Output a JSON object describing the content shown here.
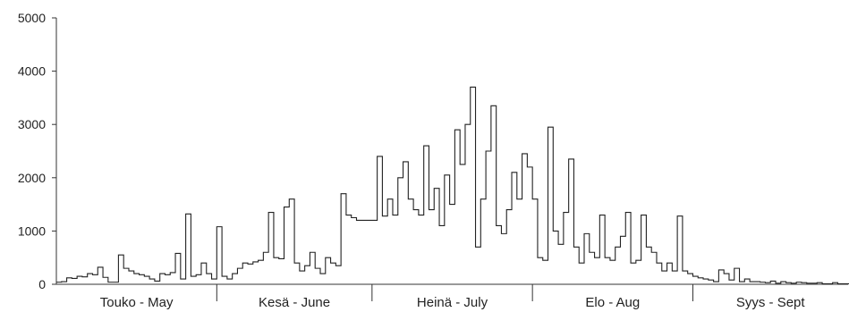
{
  "chart_data": {
    "type": "line",
    "step": true,
    "title": "",
    "xlabel": "",
    "ylabel": "",
    "ylim": [
      0,
      5000
    ],
    "y_ticks": [
      "0",
      "1000",
      "2000",
      "3000",
      "4000",
      "5000"
    ],
    "grid": false,
    "months": [
      "Touko - May",
      "Kesä - June",
      "Heinä - July",
      "Elo - Aug",
      "Syys - Sept"
    ],
    "day_range": [
      1,
      153
    ],
    "month_boundaries": [
      32,
      62,
      93,
      124
    ],
    "series": [
      {
        "values": [
          40,
          50,
          120,
          110,
          150,
          140,
          200,
          180,
          320,
          130,
          40,
          40,
          550,
          300,
          250,
          200,
          180,
          150,
          100,
          60,
          200,
          180,
          220,
          580,
          100,
          1320,
          150,
          180,
          400,
          200,
          100,
          1080,
          150,
          100,
          200,
          300,
          400,
          380,
          420,
          450,
          600,
          1350,
          500,
          480,
          1450,
          1600,
          400,
          250,
          350,
          600,
          300,
          200,
          500,
          400,
          350,
          1700,
          1300,
          1250,
          1200,
          1200,
          1200,
          1200,
          2400,
          1280,
          1600,
          1300,
          2000,
          2300,
          1600,
          1400,
          1300,
          2600,
          1400,
          1800,
          1100,
          2050,
          1500,
          2900,
          2250,
          3000,
          3700,
          700,
          1600,
          2500,
          3350,
          1100,
          950,
          1400,
          2100,
          1600,
          2450,
          2200,
          1600,
          500,
          450,
          2950,
          1000,
          750,
          1350,
          2350,
          700,
          400,
          950,
          600,
          500,
          1300,
          500,
          450,
          700,
          900,
          1350,
          400,
          450,
          1300,
          700,
          600,
          400,
          250,
          400,
          250,
          1280,
          250,
          200,
          150,
          120,
          100,
          80,
          50,
          270,
          200,
          80,
          300,
          50,
          100,
          50,
          50,
          40,
          30,
          60,
          20,
          50,
          30,
          20,
          40,
          30,
          20,
          20,
          30,
          10,
          10,
          30,
          10,
          10,
          10
        ]
      }
    ]
  }
}
